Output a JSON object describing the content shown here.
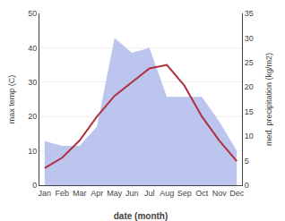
{
  "chart_data": {
    "type": "line",
    "xlabel": "date (month)",
    "ylabel": "max temp (C)",
    "y2label": "med. precipitation (kg/m2)",
    "categories": [
      "Jan",
      "Feb",
      "Mar",
      "Apr",
      "May",
      "Jun",
      "Jul",
      "Aug",
      "Sep",
      "Oct",
      "Nov",
      "Dec"
    ],
    "series": [
      {
        "type": "area",
        "axis": "y2",
        "color": "#bcc5ee",
        "values": [
          9,
          8,
          8,
          12,
          30,
          27,
          28,
          18,
          18,
          18,
          13,
          7
        ]
      },
      {
        "type": "line",
        "color": "#b03040",
        "values": [
          5,
          8,
          13,
          20,
          26,
          30,
          34,
          35,
          29,
          20,
          13,
          7
        ]
      }
    ],
    "ylim": [
      0,
      50
    ],
    "yticks": [
      0,
      10,
      20,
      30,
      40,
      50
    ],
    "y2lim": [
      0,
      35
    ],
    "y2ticks": [
      0,
      5,
      10,
      15,
      20,
      25,
      30,
      35
    ],
    "grid": true
  }
}
